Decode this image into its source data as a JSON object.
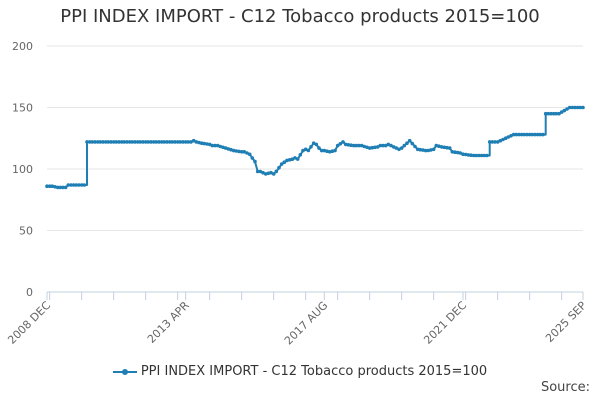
{
  "chart_data": {
    "type": "line",
    "title": "PPI INDEX IMPORT - C12 Tobacco products 2015=100",
    "xlabel": "",
    "ylabel": "",
    "ylim": [
      0,
      200
    ],
    "yticks": [
      0,
      50,
      100,
      150,
      200
    ],
    "xlim": [
      2008.917,
      2025.667
    ],
    "xticks": [
      {
        "label": "2008 DEC",
        "x": 2008.917
      },
      {
        "label": "2013 APR",
        "x": 2013.25
      },
      {
        "label": "2017 AUG",
        "x": 2017.583
      },
      {
        "label": "2021 DEC",
        "x": 2021.917
      },
      {
        "label": "2025 SEP",
        "x": 2025.667
      }
    ],
    "color": "#1f7fb4",
    "series": [
      {
        "name": "PPI INDEX IMPORT - C12 Tobacco products 2015=100",
        "x": [
          2008.917,
          2009.083,
          2009.25,
          2009.5,
          2009.583,
          2010.083,
          2010.167,
          2011,
          2012,
          2013,
          2013.417,
          2013.5,
          2013.583,
          2013.75,
          2014,
          2014.083,
          2014.25,
          2014.5,
          2014.75,
          2015,
          2015.083,
          2015.167,
          2015.25,
          2015.333,
          2015.417,
          2015.5,
          2015.583,
          2015.667,
          2015.75,
          2015.917,
          2016,
          2016.083,
          2016.25,
          2016.417,
          2016.583,
          2016.667,
          2016.75,
          2016.917,
          2017,
          2017.083,
          2017.25,
          2017.333,
          2017.417,
          2017.5,
          2017.583,
          2017.75,
          2017.917,
          2018,
          2018.167,
          2018.25,
          2018.5,
          2018.75,
          2019,
          2019.25,
          2019.333,
          2019.5,
          2019.583,
          2019.75,
          2019.917,
          2020,
          2020.083,
          2020.25,
          2020.5,
          2020.75,
          2020.833,
          2021,
          2021.083,
          2021.25,
          2021.5,
          2021.583,
          2021.833,
          2021.917,
          2022.25,
          2022.333,
          2022.5,
          2022.75,
          2022.833,
          2023,
          2023.5,
          2023.75,
          2023.833,
          2024,
          2024.5,
          2024.833,
          2024.917,
          2025.25,
          2025.5,
          2025.667
        ],
        "values": [
          86,
          86,
          85,
          85,
          87,
          87,
          122,
          122,
          122,
          122,
          122,
          123,
          122,
          121,
          120,
          119,
          119,
          117,
          115,
          114,
          114,
          113,
          112,
          109,
          106,
          98,
          98,
          97,
          96,
          97,
          96,
          98,
          104,
          107,
          108,
          109,
          108,
          115,
          116,
          115,
          121,
          120,
          117,
          115,
          115,
          114,
          115,
          119,
          122,
          120,
          119,
          119,
          117,
          118,
          119,
          119,
          120,
          118,
          116,
          117,
          119,
          123,
          116,
          115,
          115,
          116,
          119,
          118,
          117,
          114,
          113,
          112,
          111,
          111,
          111,
          122,
          122,
          122,
          128,
          128,
          128,
          128,
          145,
          145,
          145,
          150,
          150,
          150
        ]
      }
    ]
  },
  "legend": {
    "label": "PPI INDEX IMPORT - C12 Tobacco products 2015=100"
  },
  "source_label": "Source:"
}
